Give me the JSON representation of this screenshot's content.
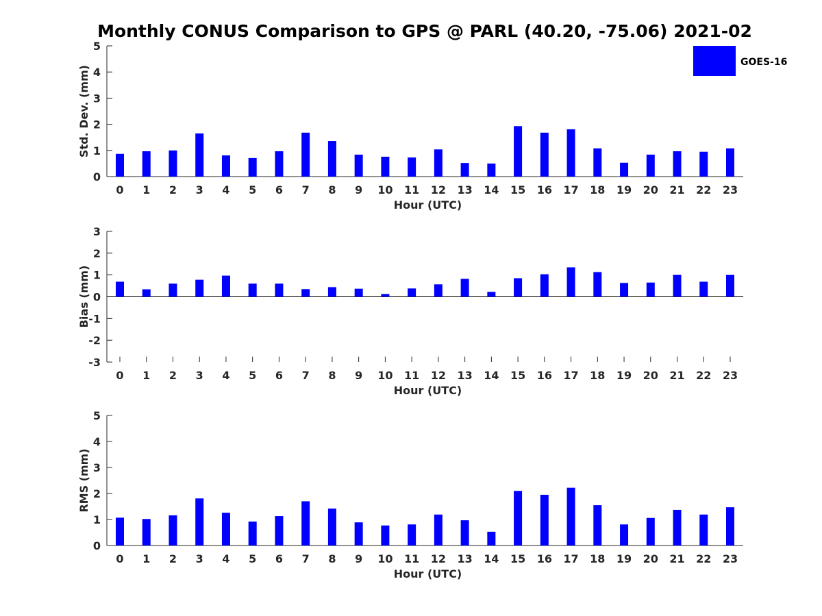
{
  "title": "Monthly CONUS Comparison to GPS @ PARL (40.20, -75.06) 2021-02",
  "legend": {
    "label": "GOES-16",
    "color": "#0000ff",
    "placement": "top-right"
  },
  "chart_data": [
    {
      "type": "bar",
      "xlabel": "Hour (UTC)",
      "ylabel": "Std. Dev. (mm)",
      "ylim": [
        0,
        5
      ],
      "yticks": [
        "0",
        "1",
        "2",
        "3",
        "4",
        "5"
      ],
      "categories": [
        "0",
        "1",
        "2",
        "3",
        "4",
        "5",
        "6",
        "7",
        "8",
        "9",
        "10",
        "11",
        "12",
        "13",
        "14",
        "15",
        "16",
        "17",
        "18",
        "19",
        "20",
        "21",
        "22",
        "23"
      ],
      "series": [
        {
          "name": "GOES-16",
          "color": "#0000ff",
          "values": [
            0.87,
            0.97,
            1.0,
            1.65,
            0.81,
            0.71,
            0.97,
            1.68,
            1.36,
            0.84,
            0.76,
            0.73,
            1.04,
            0.52,
            0.5,
            1.93,
            1.68,
            1.81,
            1.08,
            0.53,
            0.84,
            0.97,
            0.95,
            1.08
          ]
        }
      ]
    },
    {
      "type": "bar",
      "xlabel": "Hour (UTC)",
      "ylabel": "Bias (mm)",
      "ylim": [
        -3,
        3
      ],
      "yticks": [
        "-3",
        "-2",
        "-1",
        "0",
        "1",
        "2",
        "3"
      ],
      "categories": [
        "0",
        "1",
        "2",
        "3",
        "4",
        "5",
        "6",
        "7",
        "8",
        "9",
        "10",
        "11",
        "12",
        "13",
        "14",
        "15",
        "16",
        "17",
        "18",
        "19",
        "20",
        "21",
        "22",
        "23"
      ],
      "series": [
        {
          "name": "GOES-16",
          "color": "#0000ff",
          "values": [
            0.69,
            0.34,
            0.6,
            0.78,
            0.97,
            0.6,
            0.6,
            0.35,
            0.44,
            0.37,
            0.12,
            0.38,
            0.57,
            0.82,
            0.22,
            0.85,
            1.03,
            1.35,
            1.13,
            0.63,
            0.65,
            1.0,
            0.69,
            1.0
          ]
        }
      ]
    },
    {
      "type": "bar",
      "xlabel": "Hour (UTC)",
      "ylabel": "RMS (mm)",
      "ylim": [
        0,
        5
      ],
      "yticks": [
        "0",
        "1",
        "2",
        "3",
        "4",
        "5"
      ],
      "categories": [
        "0",
        "1",
        "2",
        "3",
        "4",
        "5",
        "6",
        "7",
        "8",
        "9",
        "10",
        "11",
        "12",
        "13",
        "14",
        "15",
        "16",
        "17",
        "18",
        "19",
        "20",
        "21",
        "22",
        "23"
      ],
      "series": [
        {
          "name": "GOES-16",
          "color": "#0000ff",
          "values": [
            1.07,
            1.02,
            1.16,
            1.81,
            1.26,
            0.92,
            1.13,
            1.7,
            1.42,
            0.89,
            0.77,
            0.81,
            1.19,
            0.97,
            0.53,
            2.1,
            1.95,
            2.22,
            1.55,
            0.81,
            1.06,
            1.37,
            1.19,
            1.47
          ]
        }
      ]
    }
  ]
}
